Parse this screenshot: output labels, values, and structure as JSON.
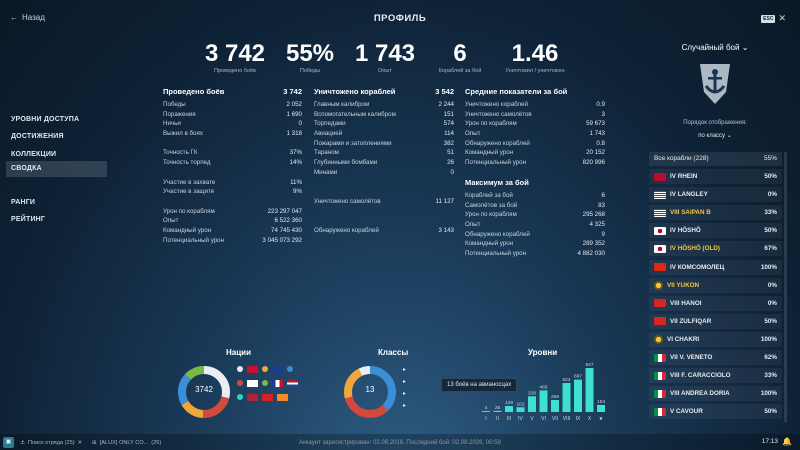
{
  "header": {
    "back": "Назад",
    "title": "ПРОФИЛЬ",
    "esc": "ESC"
  },
  "stats": [
    {
      "value": "3 742",
      "label": "Проведено боёв"
    },
    {
      "value": "55%",
      "label": "Победы"
    },
    {
      "value": "1 743",
      "label": "Опыт"
    },
    {
      "value": "6",
      "label": "Кораблей за бой"
    },
    {
      "value": "1.46",
      "label": "Уничтожил / уничтожен"
    }
  ],
  "nav": [
    "УРОВНИ ДОСТУПА",
    "ДОСТИЖЕНИЯ",
    "КОЛЛЕКЦИИ",
    "СВОДКА",
    "РАНГИ",
    "РЕЙТИНГ"
  ],
  "battles": {
    "title": "Проведено боёв",
    "total": "3 742",
    "rows": [
      [
        "Победы",
        "2 052"
      ],
      [
        "Поражения",
        "1 690"
      ],
      [
        "Ничьи",
        "0"
      ],
      [
        "Выжил в боях",
        "1 318"
      ],
      [
        "",
        ""
      ],
      [
        "Точность ГК",
        "37%"
      ],
      [
        "Точность торпед",
        "14%"
      ],
      [
        "",
        ""
      ],
      [
        "Участие в захвате",
        "11%"
      ],
      [
        "Участие в защите",
        "9%"
      ],
      [
        "",
        ""
      ],
      [
        "Урон по кораблям",
        "223 297 047"
      ],
      [
        "Опыт",
        "6 522 360"
      ],
      [
        "Командный урон",
        "74 745 430"
      ],
      [
        "Потенциальный урон",
        "3 045 073 292"
      ]
    ]
  },
  "destroyed": {
    "title": "Уничтожено кораблей",
    "total": "3 542",
    "rows": [
      [
        "Главным калибром",
        "2 244"
      ],
      [
        "Вспомогательным калибром",
        "151"
      ],
      [
        "Торпедами",
        "574"
      ],
      [
        "Авиацией",
        "114"
      ],
      [
        "Пожарами и затоплениями",
        "382"
      ],
      [
        "Тараном",
        "51"
      ],
      [
        "Глубинными бомбами",
        "26"
      ],
      [
        "Минами",
        "0"
      ],
      [
        "",
        ""
      ],
      [
        "",
        ""
      ],
      [
        "Уничтожено самолётов",
        "11 127"
      ],
      [
        "",
        ""
      ],
      [
        "",
        ""
      ],
      [
        "Обнаружено кораблей",
        "3 143"
      ]
    ]
  },
  "avg": {
    "title": "Средние показатели за бой",
    "rows": [
      [
        "Уничтожено кораблей",
        "0.9"
      ],
      [
        "Уничтожено самолётов",
        "3"
      ],
      [
        "Урон по кораблям",
        "59 673"
      ],
      [
        "Опыт",
        "1 743"
      ],
      [
        "Обнаружено кораблей",
        "0.8"
      ],
      [
        "Командный урон",
        "20 152"
      ],
      [
        "Потенциальный урон",
        "820 996"
      ]
    ]
  },
  "max": {
    "title": "Максимум за бой",
    "rows": [
      [
        "Кораблей за бой",
        "6"
      ],
      [
        "Самолётов за бой",
        "83"
      ],
      [
        "Урон по кораблям",
        "295 268"
      ],
      [
        "Опыт",
        "4 325"
      ],
      [
        "Обнаружено кораблей",
        "9"
      ],
      [
        "Командный урон",
        "289 352"
      ],
      [
        "Потенциальный урон",
        "4 882 030"
      ]
    ]
  },
  "right": {
    "battle_type": "Случайный бой",
    "sort_label": "Порядок отображения:",
    "sort_value": "по классу",
    "all_ships": "Все корабли (228)",
    "all_pct": "55%",
    "ships": [
      {
        "name": "IV RHEIN",
        "pct": "50%",
        "flag": "norway",
        "prem": false
      },
      {
        "name": "IV LANGLEY",
        "pct": "0%",
        "flag": "usa",
        "prem": false
      },
      {
        "name": "VIII SAIPAN B",
        "pct": "33%",
        "flag": "usa",
        "prem": true
      },
      {
        "name": "IV HŌSHŌ",
        "pct": "50%",
        "flag": "japan",
        "prem": false
      },
      {
        "name": "IV HŌSHŌ (OLD)",
        "pct": "67%",
        "flag": "japan",
        "prem": true
      },
      {
        "name": "IV КОМСОМОЛЕЦ",
        "pct": "100%",
        "flag": "china",
        "prem": false
      },
      {
        "name": "VII YUKON",
        "pct": "0%",
        "flag": "coin",
        "prem": true
      },
      {
        "name": "VIII HANOI",
        "pct": "0%",
        "flag": "vietnam",
        "prem": false
      },
      {
        "name": "VII ZULFIQAR",
        "pct": "50%",
        "flag": "vietnam",
        "prem": false
      },
      {
        "name": "VI CHAKRI",
        "pct": "100%",
        "flag": "coin",
        "prem": false
      },
      {
        "name": "VII V. VENETO",
        "pct": "62%",
        "flag": "italy",
        "prem": false
      },
      {
        "name": "VIII F. CARACCIOLO",
        "pct": "33%",
        "flag": "italy",
        "prem": false
      },
      {
        "name": "VIII ANDREA DORIA",
        "pct": "100%",
        "flag": "italy",
        "prem": false
      },
      {
        "name": "V CAVOUR",
        "pct": "50%",
        "flag": "italy",
        "prem": false
      }
    ]
  },
  "nations": {
    "title": "Нации",
    "center": "3742"
  },
  "classes": {
    "title": "Классы",
    "center": "13"
  },
  "tiers_chart": {
    "title": "Уровни",
    "tooltip": "13 боёв на авианосцах"
  },
  "chart_data": {
    "type": "bar",
    "title": "Уровни",
    "categories": [
      "I",
      "II",
      "III",
      "IV",
      "V",
      "VI",
      "VII",
      "VIII",
      "IX",
      "X",
      "★"
    ],
    "values": [
      4,
      25,
      129,
      102,
      338,
      465,
      258,
      624,
      697,
      947,
      153
    ],
    "ylim": [
      0,
      947
    ]
  },
  "footer": "Аккаунт зарегистрирован: 02.08.2016. Последний бой: 02.08.2026, 00:59",
  "bottom": {
    "tab1": "Поиск отряда (25)",
    "tab2": "[ALUX] ONLY CO...",
    "tab2count": "(25)",
    "clock": "17:13"
  },
  "colors": {
    "accent": "#2ed3c4",
    "bar": "#3ee0cf",
    "prem": "#f5c542"
  }
}
